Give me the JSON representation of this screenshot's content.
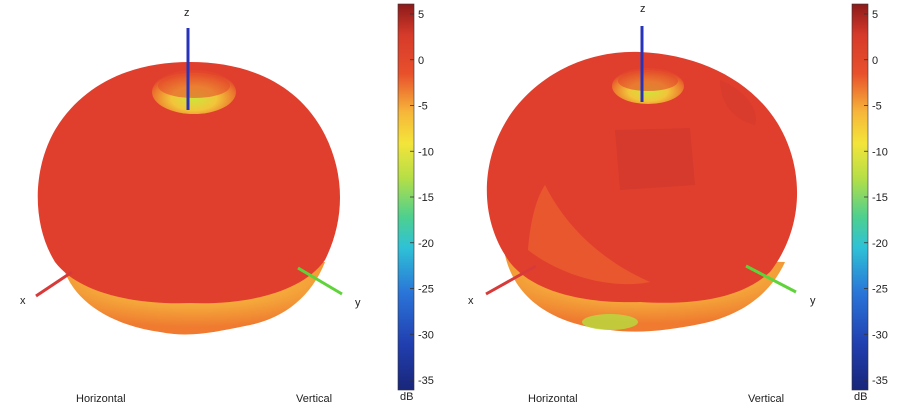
{
  "panels": [
    {
      "axis_labels": {
        "x": "x",
        "y": "y",
        "z": "z"
      },
      "bottom_left": "Horizontal",
      "bottom_right": "Vertical"
    },
    {
      "axis_labels": {
        "x": "x",
        "y": "y",
        "z": "z"
      },
      "bottom_left": "Horizontal",
      "bottom_right": "Vertical"
    }
  ],
  "colorbar": {
    "unit": "dB",
    "ticks": [
      "5",
      "0",
      "-5",
      "-10",
      "-15",
      "-20",
      "-25",
      "-30",
      "-35"
    ],
    "colors": [
      "#7f1d1d",
      "#dc3b2b",
      "#f28a2e",
      "#f7e03b",
      "#9fd94b",
      "#34c7b7",
      "#2b7fd8",
      "#1f3d9e",
      "#172a73"
    ]
  },
  "axis_colors": {
    "x": "#d83a3a",
    "y": "#5ed43a",
    "z": "#2733b8"
  }
}
